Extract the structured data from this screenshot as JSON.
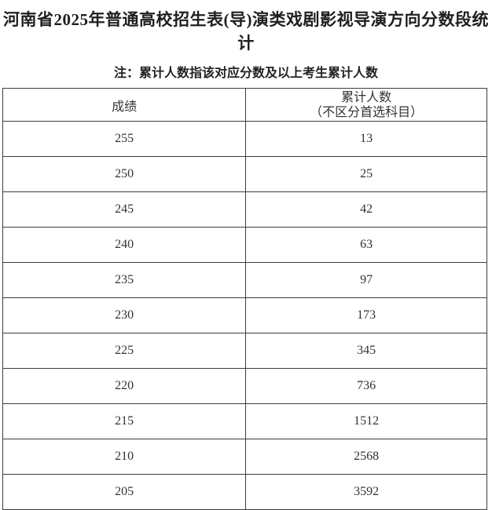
{
  "page": {
    "title": "河南省2025年普通高校招生表(导)演类戏剧影视导演方向分数段统计",
    "note": "注：累计人数指该对应分数及以上考生累计人数"
  },
  "table": {
    "header": {
      "score": "成绩",
      "count_line1": "累计人数",
      "count_line2": "（不区分首选科目）"
    },
    "rows": [
      {
        "score": "255",
        "count": "13"
      },
      {
        "score": "250",
        "count": "25"
      },
      {
        "score": "245",
        "count": "42"
      },
      {
        "score": "240",
        "count": "63"
      },
      {
        "score": "235",
        "count": "97"
      },
      {
        "score": "230",
        "count": "173"
      },
      {
        "score": "225",
        "count": "345"
      },
      {
        "score": "220",
        "count": "736"
      },
      {
        "score": "215",
        "count": "1512"
      },
      {
        "score": "210",
        "count": "2568"
      },
      {
        "score": "205",
        "count": "3592"
      }
    ]
  },
  "colors": {
    "background": "#ffffff",
    "title_text": "#1f1f1f",
    "body_text": "#333333",
    "border": "#3d3d3d"
  },
  "chart_data": {
    "type": "table",
    "title": "河南省2025年普通高校招生表(导)演类戏剧影视导演方向分数段统计",
    "note": "注：累计人数指该对应分数及以上考生累计人数",
    "columns": [
      "成绩",
      "累计人数（不区分首选科目）"
    ],
    "rows": [
      [
        255,
        13
      ],
      [
        250,
        25
      ],
      [
        245,
        42
      ],
      [
        240,
        63
      ],
      [
        235,
        97
      ],
      [
        230,
        173
      ],
      [
        225,
        345
      ],
      [
        220,
        736
      ],
      [
        215,
        1512
      ],
      [
        210,
        2568
      ],
      [
        205,
        3592
      ]
    ]
  }
}
